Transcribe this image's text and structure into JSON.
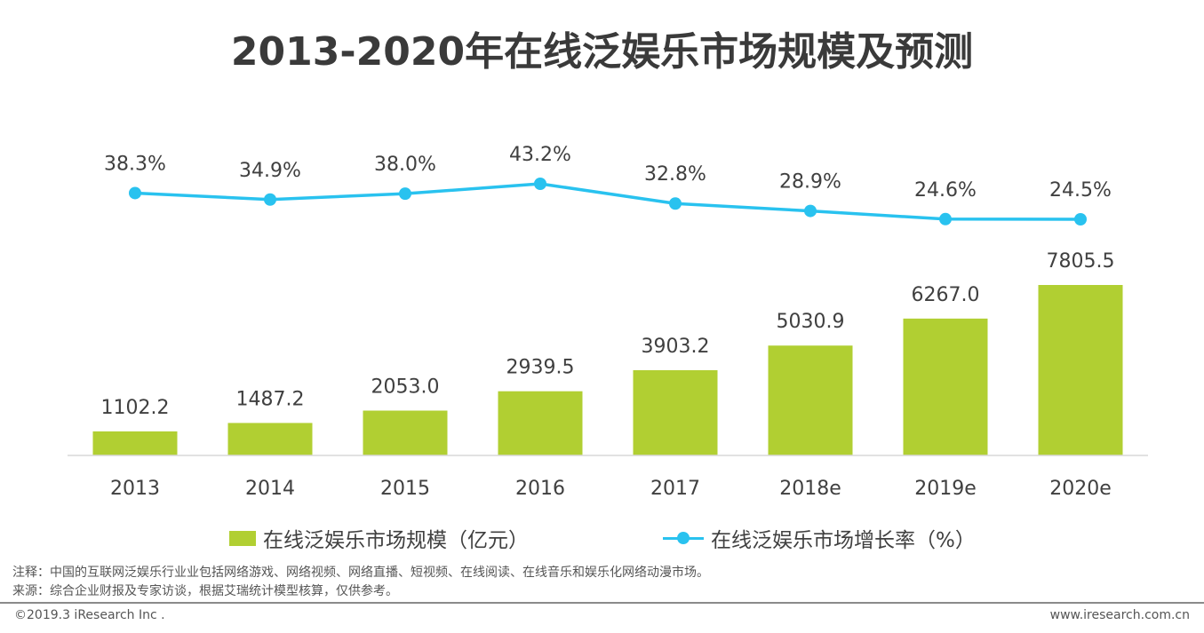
{
  "title": "2013-2020年在线泛娱乐市场规模及预测",
  "chart_data": {
    "type": "bar",
    "categories": [
      "2013",
      "2014",
      "2015",
      "2016",
      "2017",
      "2018e",
      "2019e",
      "2020e"
    ],
    "series": [
      {
        "name": "在线泛娱乐市场规模（亿元）",
        "type": "bar",
        "values": [
          1102.2,
          1487.2,
          2053.0,
          2939.5,
          3903.2,
          5030.9,
          6267.0,
          7805.5
        ],
        "labels": [
          "1102.2",
          "1487.2",
          "2053.0",
          "2939.5",
          "3903.2",
          "5030.9",
          "6267.0",
          "7805.5"
        ],
        "color": "#b1cf32"
      },
      {
        "name": "在线泛娱乐市场增长率（%）",
        "type": "line",
        "values": [
          38.3,
          34.9,
          38.0,
          43.2,
          32.8,
          28.9,
          24.6,
          24.5
        ],
        "labels": [
          "38.3%",
          "34.9%",
          "38.0%",
          "43.2%",
          "32.8%",
          "28.9%",
          "24.6%",
          "24.5%"
        ],
        "color": "#29c2ef"
      }
    ],
    "grid": false,
    "legend": "bottom"
  },
  "notes": {
    "note": "注释：中国的互联网泛娱乐行业业包括网络游戏、网络视频、网络直播、短视频、在线阅读、在线音乐和娱乐化网络动漫市场。",
    "source": "来源：综合企业财报及专家访谈，根据艾瑞统计模型核算，仅供参考。"
  },
  "footer": {
    "copyright": "©2019.3 iResearch Inc .",
    "website": "www.iresearch.com.cn"
  }
}
